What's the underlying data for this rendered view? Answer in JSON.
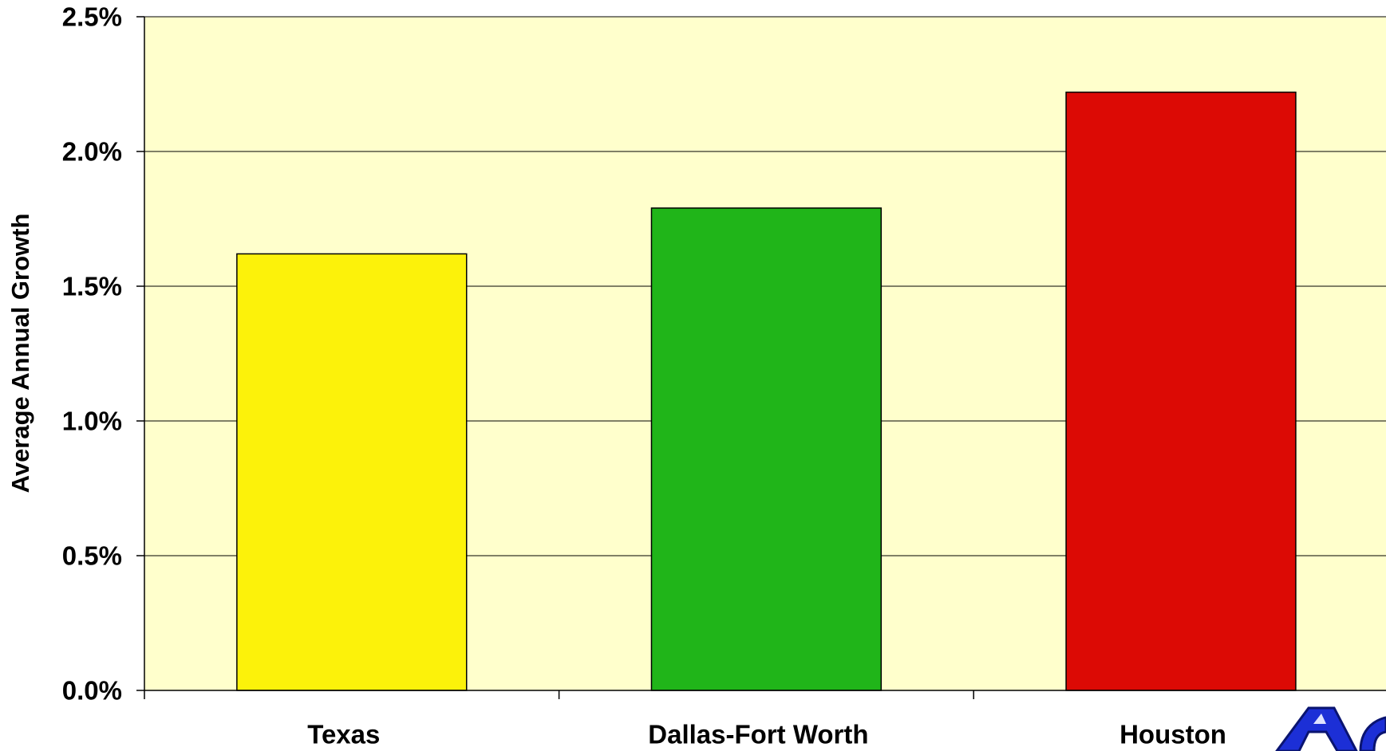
{
  "chart_data": {
    "type": "bar",
    "y_label": "Average Annual Growth",
    "categories": [
      "Texas",
      "Dallas-Fort Worth",
      "Houston"
    ],
    "series": [
      {
        "name": null,
        "colors": [
          "#fcf20a",
          "#20b519",
          "#dc0a05"
        ],
        "values": [
          1.62,
          1.79,
          2.22
        ]
      }
    ],
    "ylim": [
      0,
      2.5
    ],
    "yticks": [
      {
        "value": 0,
        "label": "0.0%"
      },
      {
        "value": 0.5,
        "label": "0.5%"
      },
      {
        "value": 1,
        "label": "1.0%"
      },
      {
        "value": 1.5,
        "label": "1.5%"
      },
      {
        "value": 2,
        "label": "2.0%"
      },
      {
        "value": 2.5,
        "label": "2.5%"
      }
    ],
    "grid": true,
    "plot_background": "#ffffcc"
  }
}
